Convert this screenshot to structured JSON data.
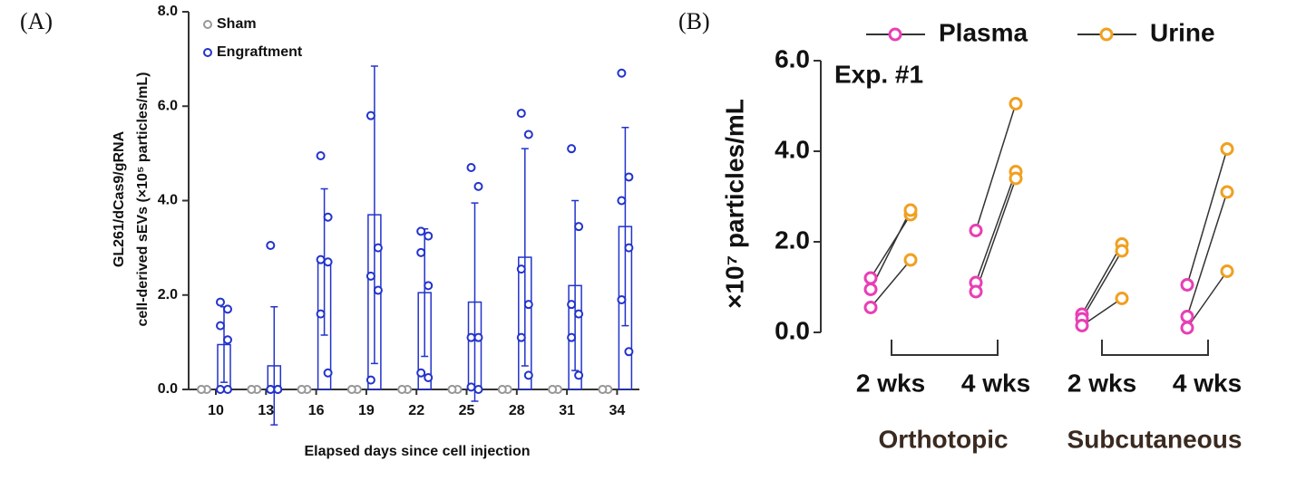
{
  "chart_data": [
    {
      "type": "bar",
      "panel": "(A)",
      "y_label": [
        "GL261/dCas9/gRNA",
        "cell-derived sEVs (×10⁵ particles/mL)"
      ],
      "x_label": "Elapsed days since cell injection",
      "categories": [
        "10",
        "13",
        "16",
        "19",
        "22",
        "25",
        "28",
        "31",
        "34"
      ],
      "ylim": [
        0,
        8
      ],
      "yticks": [
        {
          "value": 0,
          "label": "0.0"
        },
        {
          "value": 2,
          "label": "2.0"
        },
        {
          "value": 4,
          "label": "4.0"
        },
        {
          "value": 6,
          "label": "6.0"
        },
        {
          "value": 8,
          "label": "8.0"
        }
      ],
      "series": [
        {
          "name": "Sham",
          "color": "#999999",
          "values": [
            0,
            0,
            0,
            0,
            0,
            0,
            0,
            0,
            0
          ],
          "points": [
            [
              0,
              0,
              0
            ],
            [
              0,
              0,
              0
            ],
            [
              0,
              0,
              0
            ],
            [
              0,
              0,
              0
            ],
            [
              0,
              0,
              0
            ],
            [
              0,
              0,
              0
            ],
            [
              0,
              0,
              0
            ],
            [
              0,
              0,
              0
            ],
            [
              0,
              0,
              0
            ]
          ]
        },
        {
          "name": "Engraftment",
          "color": "#2233cc",
          "values": [
            0.95,
            0.5,
            2.7,
            3.7,
            2.05,
            1.85,
            2.8,
            2.2,
            3.45
          ],
          "errors": [
            0.8,
            1.25,
            1.55,
            3.15,
            1.35,
            2.1,
            2.3,
            1.8,
            2.1
          ],
          "points": [
            [
              1.85,
              1.7,
              1.35,
              1.05,
              0,
              0
            ],
            [
              3.05,
              0,
              0,
              0,
              0
            ],
            [
              4.95,
              3.65,
              2.75,
              2.7,
              1.6,
              0.35
            ],
            [
              5.8,
              3.0,
              2.4,
              2.1,
              0.2
            ],
            [
              3.35,
              3.25,
              2.9,
              2.2,
              0.35,
              0.25
            ],
            [
              4.7,
              4.3,
              1.1,
              1.1,
              0.05,
              0
            ],
            [
              5.85,
              5.4,
              2.55,
              1.8,
              1.1,
              0.3
            ],
            [
              5.1,
              3.45,
              1.8,
              1.6,
              1.1,
              0.3
            ],
            [
              6.7,
              4.5,
              4.0,
              3.0,
              1.9,
              0.8
            ]
          ]
        }
      ]
    },
    {
      "type": "paired",
      "panel": "(B)",
      "y_label": "×10⁷ particles/mL",
      "annotation": "Exp. #1",
      "categories": [
        "2 wks",
        "4 wks",
        "2 wks",
        "4 wks"
      ],
      "groups": [
        "Orthotopic",
        "Subcutaneous"
      ],
      "ylim": [
        0,
        6
      ],
      "yticks": [
        {
          "value": 0,
          "label": "0.0"
        },
        {
          "value": 2,
          "label": "2.0"
        },
        {
          "value": 4,
          "label": "4.0"
        },
        {
          "value": 6,
          "label": "6.0"
        }
      ],
      "series": [
        {
          "name": "Plasma",
          "color": "#e83fb5",
          "values": [
            [
              1.2,
              0.95,
              0.55
            ],
            [
              2.25,
              1.1,
              0.9
            ],
            [
              0.4,
              0.3,
              0.15
            ],
            [
              1.05,
              0.35,
              0.1
            ]
          ]
        },
        {
          "name": "Urine",
          "color": "#f0a020",
          "values": [
            [
              2.6,
              2.7,
              1.6
            ],
            [
              5.05,
              3.55,
              3.4
            ],
            [
              1.95,
              1.8,
              0.75
            ],
            [
              4.05,
              3.1,
              1.35
            ]
          ]
        }
      ]
    }
  ]
}
